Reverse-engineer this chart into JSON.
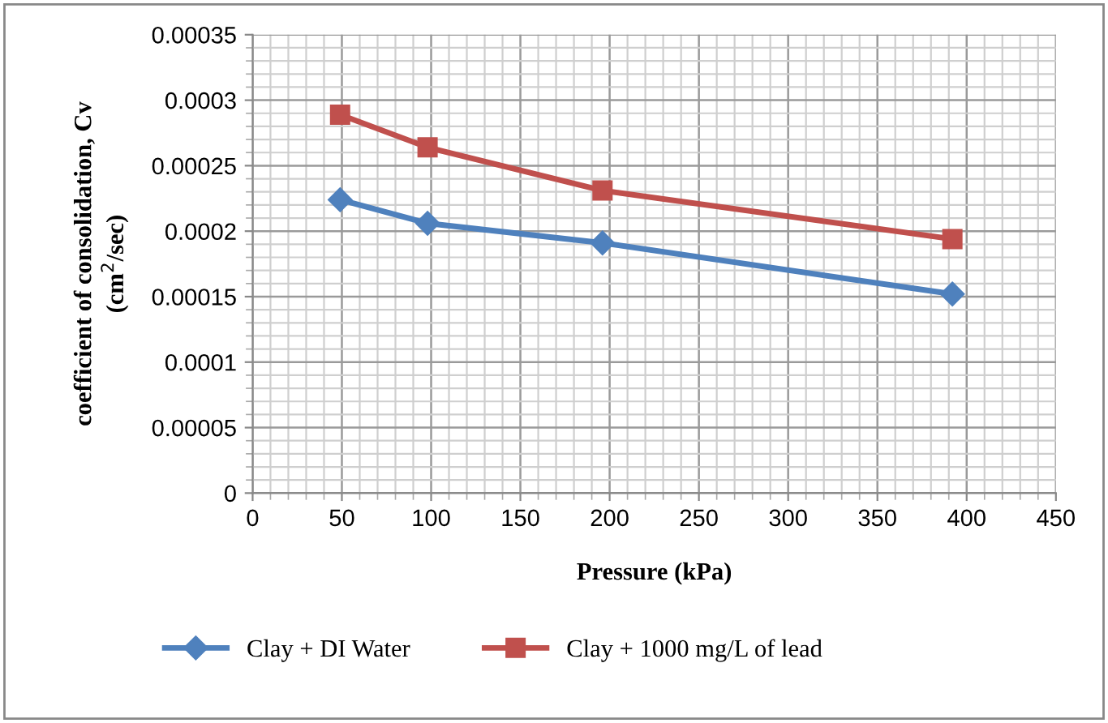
{
  "chart_data": {
    "type": "line",
    "xlabel": "Pressure (kPa)",
    "ylabel": "coefficient of consolidation, Cv\n(cm$^{2}$/sec)",
    "x": [
      49,
      98,
      196,
      392
    ],
    "series": [
      {
        "name": "Clay + DI Water",
        "color": "#4f81bd",
        "marker": "diamond",
        "values": [
          0.000224,
          0.000206,
          0.000191,
          0.000152
        ]
      },
      {
        "name": "Clay + 1000 mg/L of lead",
        "color": "#c0504d",
        "marker": "square",
        "values": [
          0.000289,
          0.000264,
          0.000231,
          0.000194
        ]
      }
    ],
    "xlim": [
      0,
      450
    ],
    "xticks": [
      0,
      50,
      100,
      150,
      200,
      250,
      300,
      350,
      400,
      450
    ],
    "ylim": [
      0,
      0.00035
    ],
    "yticks": [
      {
        "value": 0,
        "label": "0"
      },
      {
        "value": 5e-05,
        "label": "0.00005"
      },
      {
        "value": 0.0001,
        "label": "0.0001"
      },
      {
        "value": 0.00015,
        "label": "0.00015"
      },
      {
        "value": 0.0002,
        "label": "0.0002"
      },
      {
        "value": 0.00025,
        "label": "0.00025"
      },
      {
        "value": 0.0003,
        "label": "0.0003"
      },
      {
        "value": 0.00035,
        "label": "0.00035"
      }
    ],
    "grid": true,
    "legend": "bottom",
    "line_style": "solid"
  }
}
